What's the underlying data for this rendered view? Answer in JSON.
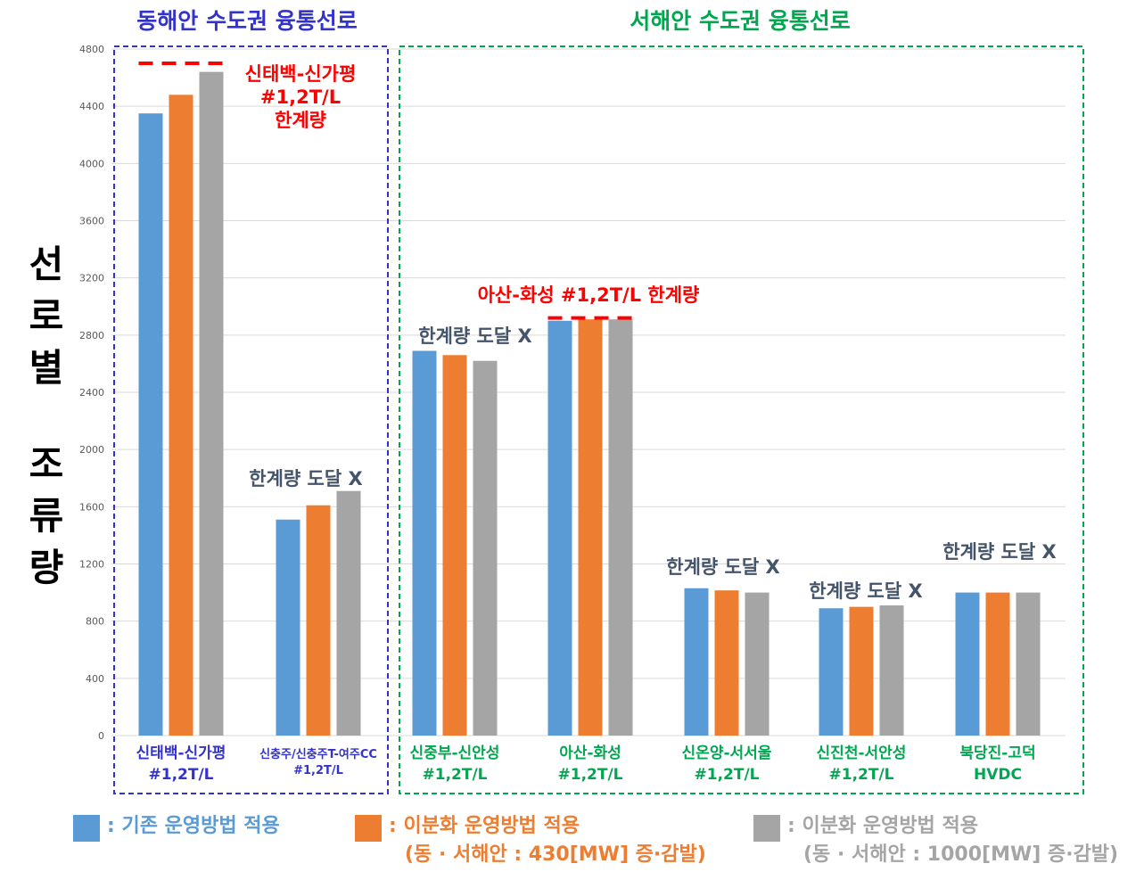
{
  "chart_data": {
    "type": "bar",
    "ylim": [
      0,
      4800
    ],
    "yticks": [
      "0",
      "400",
      "800",
      "1200",
      "1600",
      "2000",
      "2400",
      "2800",
      "3200",
      "3600",
      "4000",
      "4400",
      "4800"
    ],
    "ytitle_top": [
      "선",
      "로",
      "별"
    ],
    "ytitle_bottom": [
      "조",
      "류",
      "량"
    ],
    "categories": [
      {
        "line1": "신태백-신가평",
        "line2": "#1,2T/L"
      },
      {
        "line1": "신충주/신충주T-여주CC",
        "line2": "#1,2T/L"
      },
      {
        "line1": "신중부-신안성",
        "line2": "#1,2T/L"
      },
      {
        "line1": "아산-화성",
        "line2": "#1,2T/L"
      },
      {
        "line1": "신온양-서서울",
        "line2": "#1,2T/L"
      },
      {
        "line1": "신진천-서안성",
        "line2": "#1,2T/L"
      },
      {
        "line1": "북당진-고덕",
        "line2": "HVDC"
      }
    ],
    "series": [
      {
        "name": ": 기존 운영방법 적용",
        "color": "#5b9bd5",
        "values": [
          4350,
          1510,
          2690,
          2900,
          1030,
          890,
          1000
        ]
      },
      {
        "name": ": 이분화 운영방법 적용",
        "sub": "(동 · 서해안 : 430[MW] 증·감발)",
        "color": "#ed7d31",
        "values": [
          4480,
          1610,
          2660,
          2910,
          1015,
          900,
          1000
        ]
      },
      {
        "name": ": 이분화 운영방법 적용",
        "sub": "(동 · 서해안 : 1000[MW] 증·감발)",
        "color": "#a5a5a5",
        "values": [
          4640,
          1710,
          2620,
          2910,
          1000,
          910,
          1000
        ]
      }
    ],
    "groups": [
      {
        "title": "동해안 수도권 융통선로",
        "color": "#3333cc",
        "categories": [
          0,
          1
        ]
      },
      {
        "title": "서해안 수도권 융통선로",
        "color": "#00a650",
        "categories": [
          2,
          3,
          4,
          5,
          6
        ]
      }
    ],
    "limit_lines": [
      {
        "category": 0,
        "value": 4700,
        "label": [
          "신태백-신가평",
          "#1,2T/L",
          "한계량"
        ],
        "color": "#ff0000"
      },
      {
        "category": 3,
        "value": 2920,
        "label": [
          "아산-화성 #1,2T/L 한계량"
        ],
        "color": "#ff0000"
      }
    ],
    "annotations": [
      {
        "category": 1,
        "text": "한계량 도달 X"
      },
      {
        "category": 2,
        "text": "한계량 도달 X"
      },
      {
        "category": 4,
        "text": "한계량 도달 X"
      },
      {
        "category": 5,
        "text": "한계량 도달 X"
      },
      {
        "category": 6,
        "text": "한계량 도달 X"
      }
    ],
    "grid": true
  }
}
